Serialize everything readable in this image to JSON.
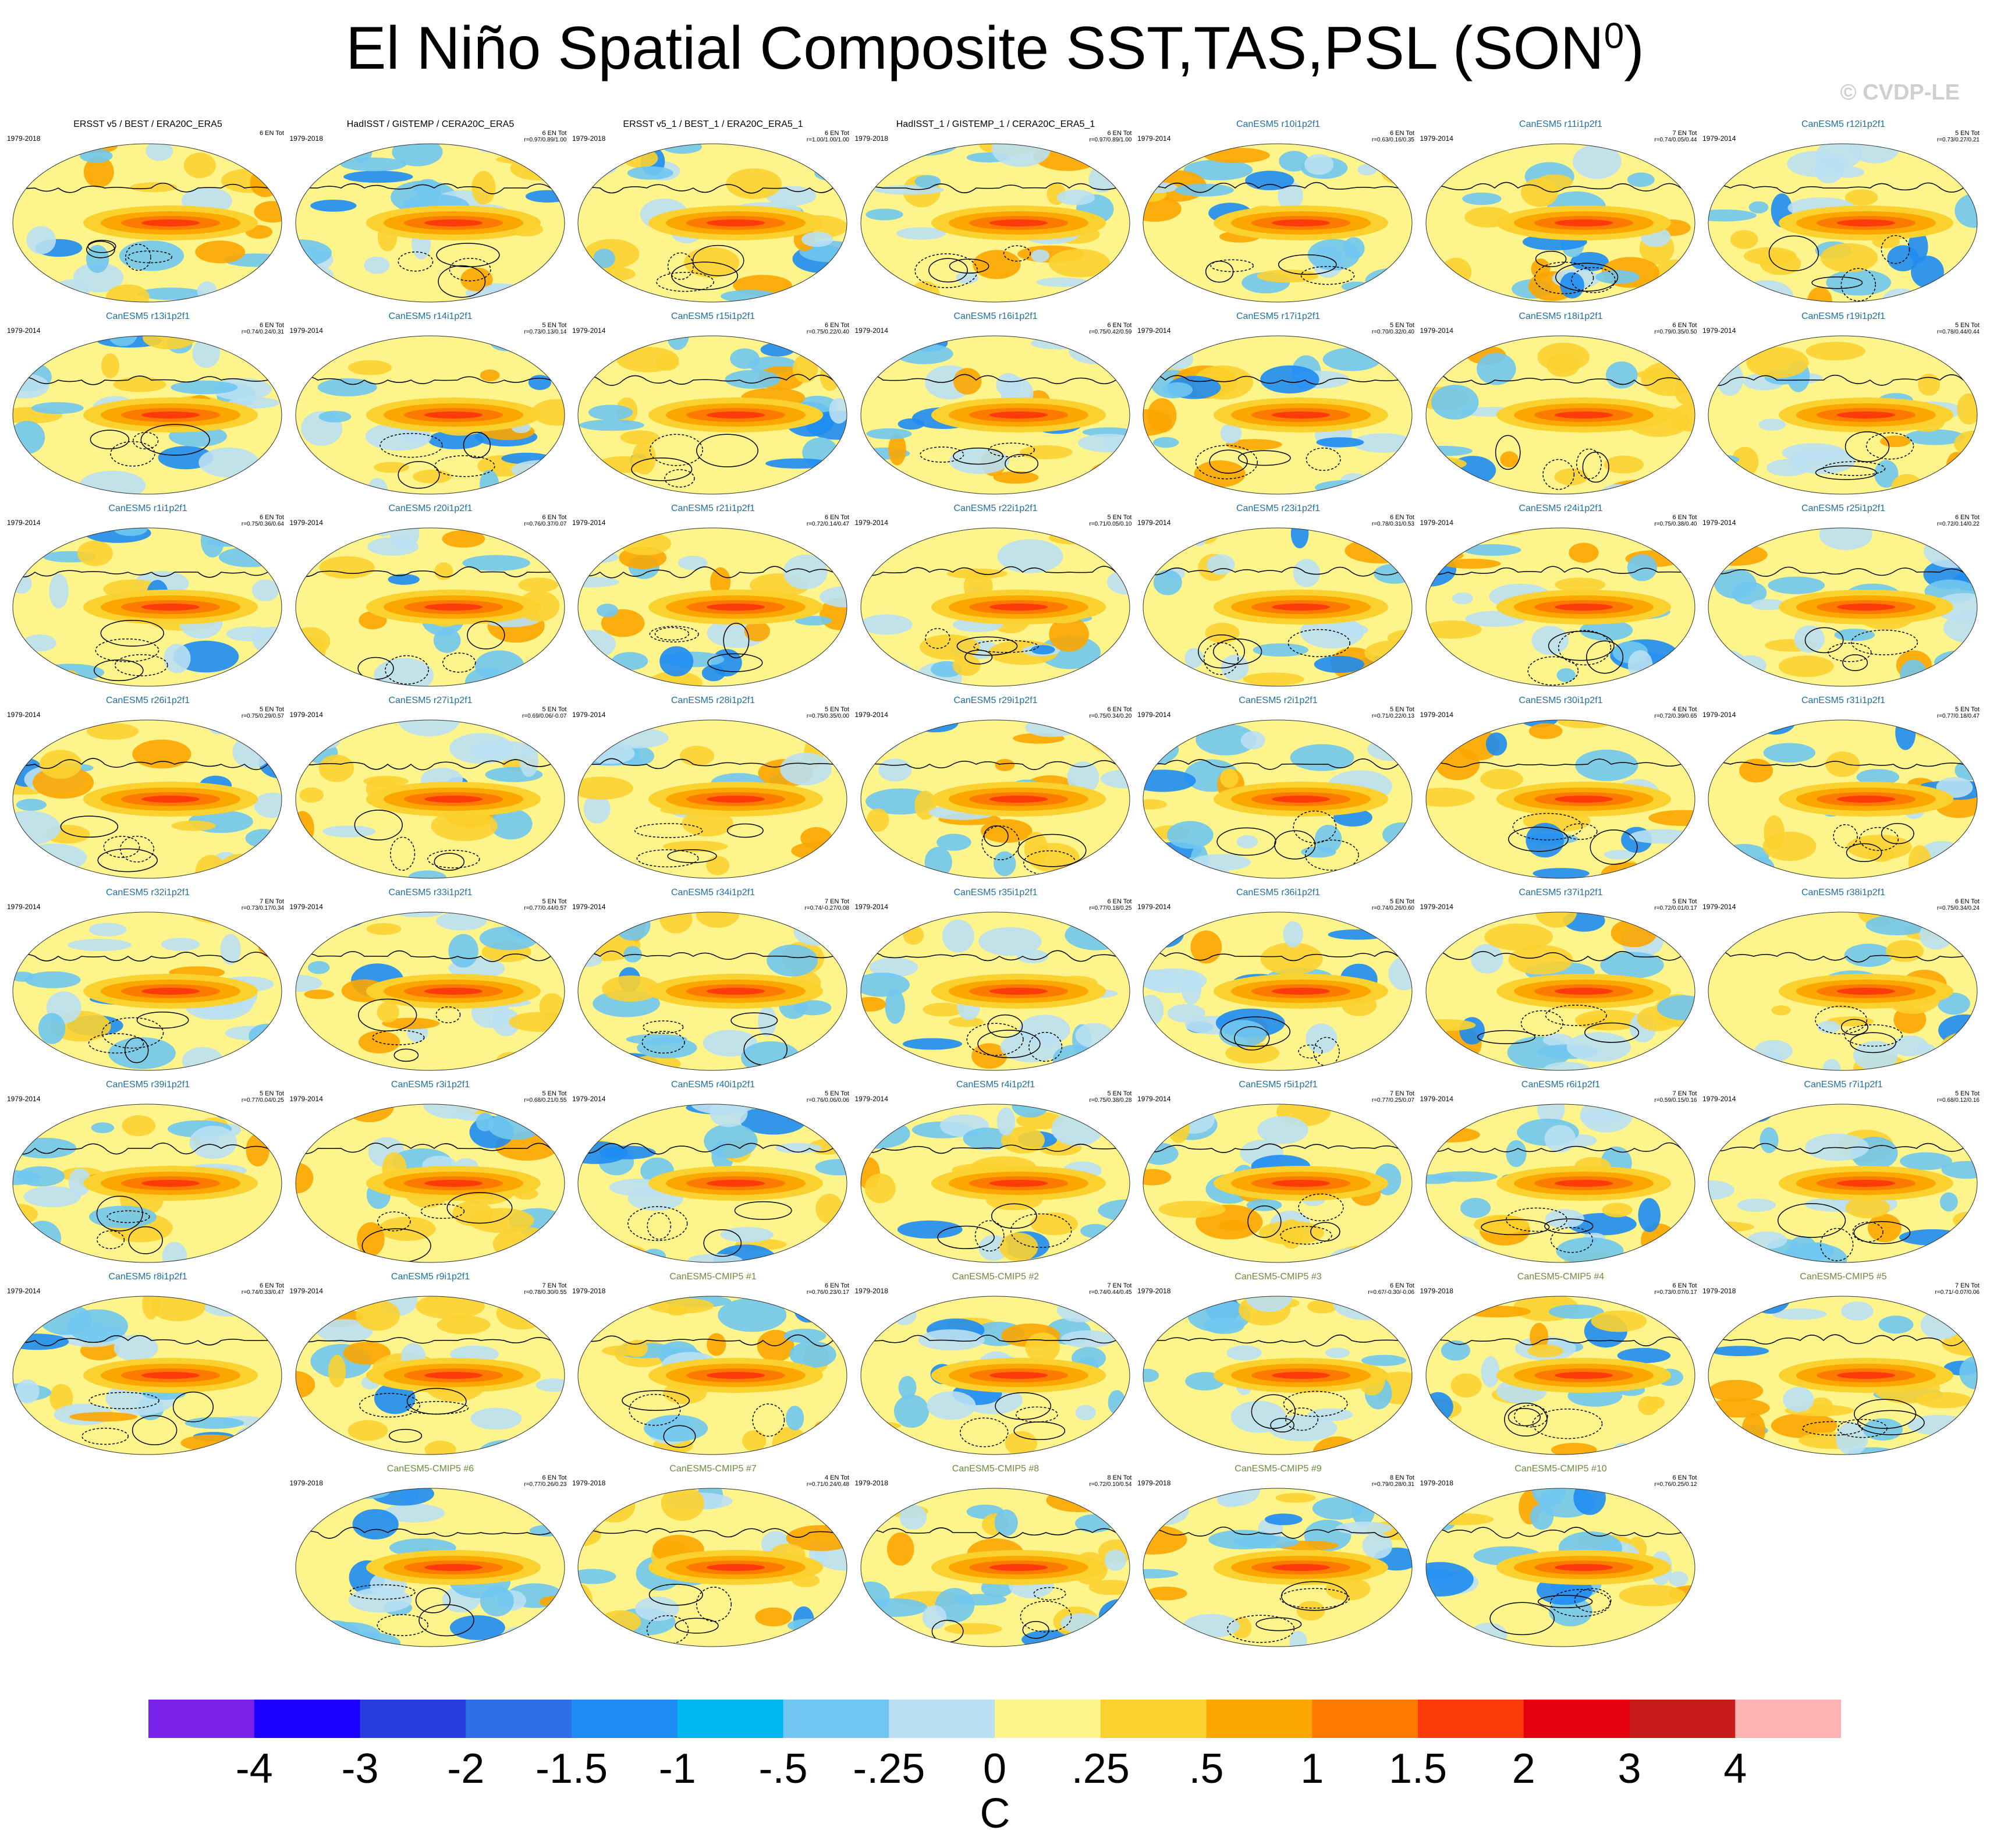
{
  "header": {
    "title": "El Niño Spatial Composite SST,TAS,PSL (SON",
    "title_sup": "0",
    "title_close": ")",
    "copyright": "© CVDP-LE"
  },
  "chart_data": {
    "type": "heatmap",
    "title": "El Niño Spatial Composite SST,TAS,PSL (SON0)",
    "description_fields": [
      "title",
      "years",
      "en_count",
      "stats"
    ],
    "panels": [
      {
        "title": "ERSST v5 / BEST / ERA20C_ERA5",
        "years": "1979-2018",
        "en_count": "6 EN Tot",
        "stats": "",
        "kind": "obs"
      },
      {
        "title": "HadISST / GISTEMP / CERA20C_ERA5",
        "years": "1979-2018",
        "en_count": "6 EN Tot",
        "stats": "r=0.97/0.89/1.00",
        "kind": "obs"
      },
      {
        "title": "ERSST v5_1 / BEST_1 / ERA20C_ERA5_1",
        "years": "1979-2018",
        "en_count": "6 EN Tot",
        "stats": "r=1.00/1.00/1.00",
        "kind": "obs"
      },
      {
        "title": "HadISST_1 / GISTEMP_1 / CERA20C_ERA5_1",
        "years": "1979-2018",
        "en_count": "6 EN Tot",
        "stats": "r=0.97/0.89/1.00",
        "kind": "obs"
      },
      {
        "title": "CanESM5 r10i1p2f1",
        "years": "1979-2014",
        "en_count": "6 EN Tot",
        "stats": "r=0.63/0.16/0.35",
        "kind": "member"
      },
      {
        "title": "CanESM5 r11i1p2f1",
        "years": "1979-2014",
        "en_count": "7 EN Tot",
        "stats": "r=0.74/0.05/0.44",
        "kind": "member"
      },
      {
        "title": "CanESM5 r12i1p2f1",
        "years": "1979-2014",
        "en_count": "5 EN Tot",
        "stats": "r=0.73/0.27/0.21",
        "kind": "member"
      },
      {
        "title": "CanESM5 r13i1p2f1",
        "years": "1979-2014",
        "en_count": "6 EN Tot",
        "stats": "r=0.74/0.24/0.31",
        "kind": "member"
      },
      {
        "title": "CanESM5 r14i1p2f1",
        "years": "1979-2014",
        "en_count": "5 EN Tot",
        "stats": "r=0.73/0.13/0.14",
        "kind": "member"
      },
      {
        "title": "CanESM5 r15i1p2f1",
        "years": "1979-2014",
        "en_count": "6 EN Tot",
        "stats": "r=0.75/0.22/0.40",
        "kind": "member"
      },
      {
        "title": "CanESM5 r16i1p2f1",
        "years": "1979-2014",
        "en_count": "6 EN Tot",
        "stats": "r=0.75/0.42/0.59",
        "kind": "member"
      },
      {
        "title": "CanESM5 r17i1p2f1",
        "years": "1979-2014",
        "en_count": "5 EN Tot",
        "stats": "r=0.70/0.32/0.40",
        "kind": "member"
      },
      {
        "title": "CanESM5 r18i1p2f1",
        "years": "1979-2014",
        "en_count": "6 EN Tot",
        "stats": "r=0.79/0.35/0.50",
        "kind": "member"
      },
      {
        "title": "CanESM5 r19i1p2f1",
        "years": "1979-2014",
        "en_count": "5 EN Tot",
        "stats": "r=0.78/0.44/0.44",
        "kind": "member"
      },
      {
        "title": "CanESM5 r1i1p2f1",
        "years": "1979-2014",
        "en_count": "6 EN Tot",
        "stats": "r=0.75/0.36/0.64",
        "kind": "member"
      },
      {
        "title": "CanESM5 r20i1p2f1",
        "years": "1979-2014",
        "en_count": "6 EN Tot",
        "stats": "r=0.76/0.37/0.07",
        "kind": "member"
      },
      {
        "title": "CanESM5 r21i1p2f1",
        "years": "1979-2014",
        "en_count": "6 EN Tot",
        "stats": "r=0.72/0.14/0.47",
        "kind": "member"
      },
      {
        "title": "CanESM5 r22i1p2f1",
        "years": "1979-2014",
        "en_count": "5 EN Tot",
        "stats": "r=0.71/0.05/0.10",
        "kind": "member"
      },
      {
        "title": "CanESM5 r23i1p2f1",
        "years": "1979-2014",
        "en_count": "6 EN Tot",
        "stats": "r=0.78/0.31/0.53",
        "kind": "member"
      },
      {
        "title": "CanESM5 r24i1p2f1",
        "years": "1979-2014",
        "en_count": "6 EN Tot",
        "stats": "r=0.75/0.38/0.40",
        "kind": "member"
      },
      {
        "title": "CanESM5 r25i1p2f1",
        "years": "1979-2014",
        "en_count": "6 EN Tot",
        "stats": "r=0.72/0.14/0.22",
        "kind": "member"
      },
      {
        "title": "CanESM5 r26i1p2f1",
        "years": "1979-2014",
        "en_count": "5 EN Tot",
        "stats": "r=0.75/0.29/0.57",
        "kind": "member"
      },
      {
        "title": "CanESM5 r27i1p2f1",
        "years": "1979-2014",
        "en_count": "5 EN Tot",
        "stats": "r=0.69/0.06/-0.07",
        "kind": "member"
      },
      {
        "title": "CanESM5 r28i1p2f1",
        "years": "1979-2014",
        "en_count": "5 EN Tot",
        "stats": "r=0.75/0.35/0.00",
        "kind": "member"
      },
      {
        "title": "CanESM5 r29i1p2f1",
        "years": "1979-2014",
        "en_count": "6 EN Tot",
        "stats": "r=0.75/0.34/0.20",
        "kind": "member"
      },
      {
        "title": "CanESM5 r2i1p2f1",
        "years": "1979-2014",
        "en_count": "5 EN Tot",
        "stats": "r=0.71/0.22/0.13",
        "kind": "member"
      },
      {
        "title": "CanESM5 r30i1p2f1",
        "years": "1979-2014",
        "en_count": "4 EN Tot",
        "stats": "r=0.72/0.39/0.65",
        "kind": "member"
      },
      {
        "title": "CanESM5 r31i1p2f1",
        "years": "1979-2014",
        "en_count": "5 EN Tot",
        "stats": "r=0.77/0.18/0.47",
        "kind": "member"
      },
      {
        "title": "CanESM5 r32i1p2f1",
        "years": "1979-2014",
        "en_count": "7 EN Tot",
        "stats": "r=0.73/0.17/0.34",
        "kind": "member"
      },
      {
        "title": "CanESM5 r33i1p2f1",
        "years": "1979-2014",
        "en_count": "5 EN Tot",
        "stats": "r=0.77/0.44/0.57",
        "kind": "member"
      },
      {
        "title": "CanESM5 r34i1p2f1",
        "years": "1979-2014",
        "en_count": "7 EN Tot",
        "stats": "r=0.74/-0.27/0.08",
        "kind": "member"
      },
      {
        "title": "CanESM5 r35i1p2f1",
        "years": "1979-2014",
        "en_count": "6 EN Tot",
        "stats": "r=0.77/0.18/0.25",
        "kind": "member"
      },
      {
        "title": "CanESM5 r36i1p2f1",
        "years": "1979-2014",
        "en_count": "5 EN Tot",
        "stats": "r=0.74/0.26/0.60",
        "kind": "member"
      },
      {
        "title": "CanESM5 r37i1p2f1",
        "years": "1979-2014",
        "en_count": "5 EN Tot",
        "stats": "r=0.72/0.01/0.17",
        "kind": "member"
      },
      {
        "title": "CanESM5 r38i1p2f1",
        "years": "1979-2014",
        "en_count": "6 EN Tot",
        "stats": "r=0.75/0.34/0.24",
        "kind": "member"
      },
      {
        "title": "CanESM5 r39i1p2f1",
        "years": "1979-2014",
        "en_count": "5 EN Tot",
        "stats": "r=0.77/0.04/0.25",
        "kind": "member"
      },
      {
        "title": "CanESM5 r3i1p2f1",
        "years": "1979-2014",
        "en_count": "5 EN Tot",
        "stats": "r=0.68/0.21/0.55",
        "kind": "member"
      },
      {
        "title": "CanESM5 r40i1p2f1",
        "years": "1979-2014",
        "en_count": "5 EN Tot",
        "stats": "r=0.76/0.06/0.06",
        "kind": "member"
      },
      {
        "title": "CanESM5 r4i1p2f1",
        "years": "1979-2014",
        "en_count": "5 EN Tot",
        "stats": "r=0.75/0.38/0.28",
        "kind": "member"
      },
      {
        "title": "CanESM5 r5i1p2f1",
        "years": "1979-2014",
        "en_count": "7 EN Tot",
        "stats": "r=0.77/0.25/0.07",
        "kind": "member"
      },
      {
        "title": "CanESM5 r6i1p2f1",
        "years": "1979-2014",
        "en_count": "7 EN Tot",
        "stats": "r=0.59/0.15/0.16",
        "kind": "member"
      },
      {
        "title": "CanESM5 r7i1p2f1",
        "years": "1979-2014",
        "en_count": "5 EN Tot",
        "stats": "r=0.68/0.12/0.16",
        "kind": "member"
      },
      {
        "title": "CanESM5 r8i1p2f1",
        "years": "1979-2014",
        "en_count": "6 EN Tot",
        "stats": "r=0.74/0.33/0.47",
        "kind": "member"
      },
      {
        "title": "CanESM5 r9i1p2f1",
        "years": "1979-2014",
        "en_count": "7 EN Tot",
        "stats": "r=0.78/0.30/0.55",
        "kind": "member"
      },
      {
        "title": "CanESM5-CMIP5 #1",
        "years": "1979-2018",
        "en_count": "6 EN Tot",
        "stats": "r=0.76/0.23/0.17",
        "kind": "cmip5"
      },
      {
        "title": "CanESM5-CMIP5 #2",
        "years": "1979-2018",
        "en_count": "7 EN Tot",
        "stats": "r=0.74/0.44/0.45",
        "kind": "cmip5"
      },
      {
        "title": "CanESM5-CMIP5 #3",
        "years": "1979-2018",
        "en_count": "6 EN Tot",
        "stats": "r=0.67/-0.30/-0.06",
        "kind": "cmip5"
      },
      {
        "title": "CanESM5-CMIP5 #4",
        "years": "1979-2018",
        "en_count": "6 EN Tot",
        "stats": "r=0.73/0.07/0.17",
        "kind": "cmip5"
      },
      {
        "title": "CanESM5-CMIP5 #5",
        "years": "1979-2018",
        "en_count": "7 EN Tot",
        "stats": "r=0.71/-0.07/0.06",
        "kind": "cmip5"
      },
      {
        "title": "CanESM5-CMIP5 #6",
        "years": "1979-2018",
        "en_count": "6 EN Tot",
        "stats": "r=0.77/0.26/0.23",
        "kind": "cmip5"
      },
      {
        "title": "CanESM5-CMIP5 #7",
        "years": "1979-2018",
        "en_count": "4 EN Tot",
        "stats": "r=0.71/0.24/0.48",
        "kind": "cmip5"
      },
      {
        "title": "CanESM5-CMIP5 #8",
        "years": "1979-2018",
        "en_count": "8 EN Tot",
        "stats": "r=0.72/0.10/0.54",
        "kind": "cmip5"
      },
      {
        "title": "CanESM5-CMIP5 #9",
        "years": "1979-2018",
        "en_count": "8 EN Tot",
        "stats": "r=0.79/0.28/0.31",
        "kind": "cmip5"
      },
      {
        "title": "CanESM5-CMIP5 #10",
        "years": "1979-2018",
        "en_count": "6 EN Tot",
        "stats": "r=0.76/0.25/0.12",
        "kind": "cmip5"
      }
    ],
    "colorbar": {
      "labels": [
        "-4",
        "-3",
        "-2",
        "-1.5",
        "-1",
        "-.5",
        "-.25",
        "0",
        ".25",
        ".5",
        "1",
        "1.5",
        "2",
        "3",
        "4"
      ],
      "colors": [
        "#7b22e8",
        "#1c00ff",
        "#2a3ee0",
        "#2f6fe6",
        "#1e8cf2",
        "#00b6f0",
        "#70c6f0",
        "#b9e0f2",
        "#fdf58c",
        "#fbd130",
        "#fca600",
        "#fc7a00",
        "#fc3a0a",
        "#e6000e",
        "#c81c1c",
        "#fdb3b3"
      ],
      "units": "C"
    }
  }
}
